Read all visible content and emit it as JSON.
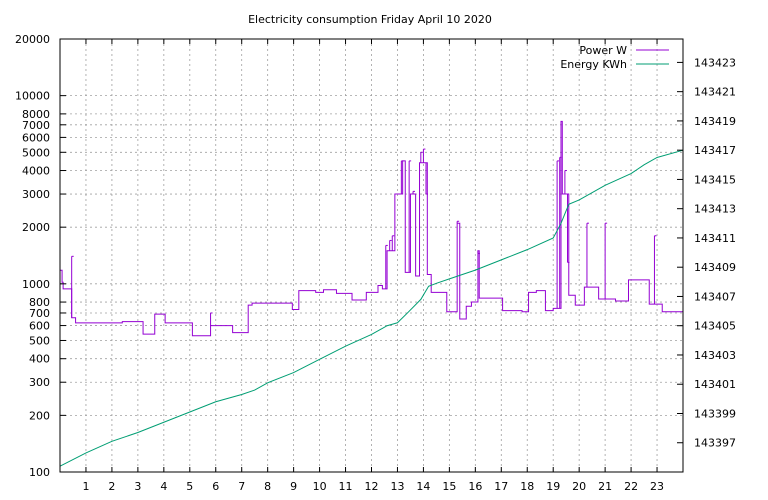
{
  "chart_data": {
    "type": "line",
    "title": "Electricity consumption Friday April 10 2020",
    "grid": true,
    "legend_position": "top-right",
    "x": {
      "label": "",
      "range": [
        0,
        24
      ],
      "ticks": [
        1,
        2,
        3,
        4,
        5,
        6,
        7,
        8,
        9,
        10,
        11,
        12,
        13,
        14,
        15,
        16,
        17,
        18,
        19,
        20,
        21,
        22,
        23
      ]
    },
    "y_left": {
      "label": "",
      "scale": "log",
      "range": [
        100,
        20000
      ],
      "ticks": [
        100,
        200,
        300,
        400,
        500,
        600,
        700,
        800,
        1000,
        2000,
        3000,
        4000,
        5000,
        6000,
        7000,
        8000,
        10000,
        20000
      ]
    },
    "y_right": {
      "label": "",
      "scale": "linear",
      "range": [
        143395,
        143424.6
      ],
      "ticks": [
        143397,
        143399,
        143401,
        143403,
        143405,
        143407,
        143409,
        143411,
        143413,
        143415,
        143417,
        143419,
        143421,
        143423
      ]
    },
    "series": [
      {
        "name": "Power W",
        "axis": "left",
        "color": "#9400d3",
        "step": true,
        "points": [
          [
            0.0,
            1180
          ],
          [
            0.08,
            1020
          ],
          [
            0.12,
            940
          ],
          [
            0.45,
            660
          ],
          [
            0.6,
            620
          ],
          [
            2.4,
            630
          ],
          [
            3.2,
            540
          ],
          [
            3.65,
            690
          ],
          [
            4.05,
            620
          ],
          [
            5.1,
            530
          ],
          [
            5.8,
            600
          ],
          [
            6.65,
            550
          ],
          [
            7.25,
            770
          ],
          [
            7.4,
            790
          ],
          [
            8.95,
            730
          ],
          [
            9.2,
            920
          ],
          [
            9.85,
            900
          ],
          [
            10.15,
            930
          ],
          [
            10.65,
            890
          ],
          [
            11.25,
            820
          ],
          [
            11.8,
            900
          ],
          [
            12.25,
            980
          ],
          [
            12.42,
            940
          ],
          [
            12.6,
            1500
          ],
          [
            12.9,
            3000
          ],
          [
            13.2,
            4500
          ],
          [
            13.3,
            1150
          ],
          [
            13.5,
            3000
          ],
          [
            13.7,
            1100
          ],
          [
            13.85,
            4400
          ],
          [
            14.15,
            1120
          ],
          [
            14.3,
            900
          ],
          [
            14.9,
            710
          ],
          [
            15.3,
            2100
          ],
          [
            15.4,
            650
          ],
          [
            15.65,
            760
          ],
          [
            15.85,
            800
          ],
          [
            16.1,
            1500
          ],
          [
            16.15,
            840
          ],
          [
            17.05,
            720
          ],
          [
            17.8,
            710
          ],
          [
            18.05,
            900
          ],
          [
            18.35,
            920
          ],
          [
            18.7,
            720
          ],
          [
            19.0,
            740
          ],
          [
            19.3,
            7300
          ],
          [
            19.35,
            3000
          ],
          [
            19.6,
            870
          ],
          [
            19.85,
            770
          ],
          [
            20.2,
            960
          ],
          [
            20.75,
            830
          ],
          [
            21.4,
            810
          ],
          [
            21.9,
            1050
          ],
          [
            22.7,
            780
          ],
          [
            23.2,
            710
          ],
          [
            24.0,
            700
          ]
        ],
        "spikes": [
          [
            0.45,
            1400
          ],
          [
            5.8,
            700
          ],
          [
            12.55,
            1600
          ],
          [
            12.7,
            1700
          ],
          [
            12.8,
            1800
          ],
          [
            13.15,
            4500
          ],
          [
            13.45,
            4500
          ],
          [
            13.6,
            3100
          ],
          [
            13.9,
            5000
          ],
          [
            14.0,
            5200
          ],
          [
            14.1,
            3000
          ],
          [
            15.3,
            2150
          ],
          [
            16.1,
            1450
          ],
          [
            19.15,
            4500
          ],
          [
            19.25,
            4700
          ],
          [
            19.45,
            4000
          ],
          [
            19.55,
            1300
          ],
          [
            20.3,
            2100
          ],
          [
            21.0,
            2100
          ],
          [
            22.9,
            1800
          ]
        ]
      },
      {
        "name": "Energy KWh",
        "axis": "right",
        "color": "#009e73",
        "step": false,
        "points": [
          [
            0.0,
            143395.4
          ],
          [
            1.0,
            143396.3
          ],
          [
            2.0,
            143397.1
          ],
          [
            3.0,
            143397.7
          ],
          [
            4.0,
            143398.4
          ],
          [
            5.0,
            143399.1
          ],
          [
            6.0,
            143399.8
          ],
          [
            7.0,
            143400.3
          ],
          [
            7.5,
            143400.6
          ],
          [
            8.0,
            143401.1
          ],
          [
            9.0,
            143401.8
          ],
          [
            10.0,
            143402.7
          ],
          [
            11.0,
            143403.6
          ],
          [
            12.0,
            143404.4
          ],
          [
            12.6,
            143405.0
          ],
          [
            13.0,
            143405.2
          ],
          [
            13.4,
            143405.9
          ],
          [
            13.9,
            143406.8
          ],
          [
            14.2,
            143407.7
          ],
          [
            14.5,
            143407.9
          ],
          [
            15.0,
            143408.2
          ],
          [
            16.0,
            143408.8
          ],
          [
            17.0,
            143409.5
          ],
          [
            18.0,
            143410.2
          ],
          [
            19.0,
            143411.0
          ],
          [
            19.3,
            143412.0
          ],
          [
            19.6,
            143413.3
          ],
          [
            20.0,
            143413.6
          ],
          [
            21.0,
            143414.6
          ],
          [
            22.0,
            143415.4
          ],
          [
            22.5,
            143416.0
          ],
          [
            23.0,
            143416.5
          ],
          [
            24.0,
            143417.0
          ]
        ]
      }
    ]
  }
}
